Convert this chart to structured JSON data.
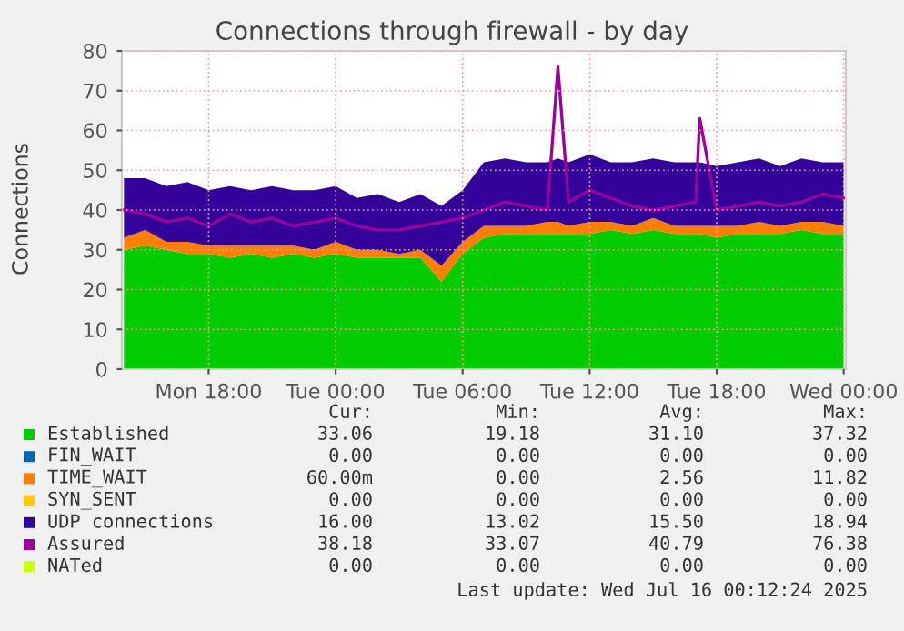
{
  "chart_data": {
    "type": "area",
    "title": "Connections through firewall - by day",
    "ylabel": "Connections",
    "stacked": true,
    "grid": true,
    "legend": "bottom",
    "x": [
      "2025-07-14T14:00",
      "2025-07-14T15:00",
      "2025-07-14T16:00",
      "2025-07-14T17:00",
      "2025-07-14T18:00",
      "2025-07-14T19:00",
      "2025-07-14T20:00",
      "2025-07-14T21:00",
      "2025-07-14T22:00",
      "2025-07-14T23:00",
      "2025-07-15T00:00",
      "2025-07-15T01:00",
      "2025-07-15T02:00",
      "2025-07-15T03:00",
      "2025-07-15T04:00",
      "2025-07-15T05:00",
      "2025-07-15T06:00",
      "2025-07-15T07:00",
      "2025-07-15T08:00",
      "2025-07-15T09:00",
      "2025-07-15T10:00",
      "2025-07-15T10:30",
      "2025-07-15T11:00",
      "2025-07-15T12:00",
      "2025-07-15T13:00",
      "2025-07-15T14:00",
      "2025-07-15T15:00",
      "2025-07-15T16:00",
      "2025-07-15T17:00",
      "2025-07-15T17:12",
      "2025-07-15T18:00",
      "2025-07-15T19:00",
      "2025-07-15T20:00",
      "2025-07-15T21:00",
      "2025-07-15T22:00",
      "2025-07-15T23:00",
      "2025-07-16T00:00"
    ],
    "xlim": [
      "2025-07-14T13:54",
      "2025-07-16T00:06"
    ],
    "xticks": [
      {
        "value": "2025-07-14T18:00",
        "label": "Mon 18:00"
      },
      {
        "value": "2025-07-15T00:00",
        "label": "Tue 00:00"
      },
      {
        "value": "2025-07-15T06:00",
        "label": "Tue 06:00"
      },
      {
        "value": "2025-07-15T12:00",
        "label": "Tue 12:00"
      },
      {
        "value": "2025-07-15T18:00",
        "label": "Tue 18:00"
      },
      {
        "value": "2025-07-16T00:00",
        "label": "Wed 00:00"
      }
    ],
    "ylim": [
      0,
      80
    ],
    "yticks": [
      0,
      10,
      20,
      30,
      40,
      50,
      60,
      70,
      80
    ],
    "series": [
      {
        "name": "Established",
        "color": "#00cc00",
        "values": [
          30,
          31,
          30,
          29,
          29,
          28,
          29,
          28,
          29,
          28,
          29,
          28,
          28,
          28,
          28,
          22,
          29,
          33,
          34,
          34,
          34,
          34,
          34,
          34,
          35,
          34,
          35,
          34,
          34,
          34,
          33,
          34,
          34,
          34,
          35,
          34,
          34
        ]
      },
      {
        "name": "FIN_WAIT",
        "color": "#0066b3",
        "values": [
          null,
          null,
          null,
          null,
          null,
          null,
          null,
          null,
          null,
          null,
          null,
          null,
          null,
          null,
          null,
          null,
          null,
          null,
          null,
          null,
          null,
          null,
          null,
          null,
          null,
          null,
          null,
          null,
          null,
          null,
          null,
          null,
          null,
          null,
          null,
          null,
          null
        ]
      },
      {
        "name": "TIME_WAIT",
        "color": "#ff8000",
        "values": [
          3,
          4,
          2,
          3,
          2,
          3,
          2,
          3,
          2,
          2,
          3,
          2,
          2,
          1,
          2,
          4,
          3,
          3,
          2,
          2,
          3,
          3,
          2,
          3,
          2,
          2,
          3,
          2,
          2,
          2,
          3,
          2,
          3,
          2,
          2,
          3,
          2
        ]
      },
      {
        "name": "SYN_SENT",
        "color": "#ffcc00",
        "values": [
          null,
          null,
          null,
          null,
          null,
          null,
          null,
          null,
          null,
          null,
          null,
          null,
          null,
          null,
          null,
          null,
          null,
          null,
          null,
          null,
          null,
          null,
          null,
          null,
          null,
          null,
          null,
          null,
          null,
          null,
          null,
          null,
          null,
          null,
          null,
          null,
          null
        ]
      },
      {
        "name": "UDP connections",
        "color": "#330099",
        "values": [
          15,
          13,
          14,
          15,
          14,
          15,
          14,
          15,
          14,
          15,
          14,
          13,
          14,
          13,
          14,
          15,
          13,
          16,
          17,
          16,
          15,
          16,
          16,
          17,
          15,
          16,
          15,
          16,
          16,
          16,
          15,
          16,
          16,
          15,
          16,
          15,
          16
        ]
      },
      {
        "name": "Assured",
        "color": "#990099",
        "type": "line",
        "values": [
          40,
          39,
          37,
          38,
          36,
          39,
          37,
          38,
          36,
          37,
          38,
          36,
          35,
          35,
          36,
          37,
          38,
          40,
          42,
          41,
          40,
          76,
          42,
          45,
          43,
          41,
          40,
          41,
          42,
          63,
          40,
          41,
          42,
          41,
          42,
          44,
          43
        ]
      },
      {
        "name": "NATed",
        "color": "#ccff00",
        "type": "line",
        "values": [
          null,
          null,
          null,
          null,
          null,
          null,
          null,
          null,
          null,
          null,
          null,
          null,
          null,
          null,
          null,
          null,
          null,
          null,
          null,
          null,
          null,
          null,
          null,
          null,
          null,
          null,
          null,
          null,
          null,
          null,
          null,
          null,
          null,
          null,
          null,
          null,
          null
        ]
      }
    ],
    "annotations": [
      "Cur:",
      "Min:",
      "Avg:",
      "Max:",
      "33.06",
      "19.18",
      "31.10",
      "37.32",
      "0.00",
      "0.00",
      "0.00",
      "0.00",
      "60.00m",
      "0.00",
      "2.56",
      "11.82",
      "0.00",
      "0.00",
      "0.00",
      "0.00",
      "16.00",
      "13.02",
      "15.50",
      "18.94",
      "38.18",
      "33.07",
      "40.79",
      "76.38",
      "0.00",
      "0.00",
      "0.00",
      "0.00",
      "Last update: Wed Jul 16 00:12:24 2025"
    ]
  }
}
